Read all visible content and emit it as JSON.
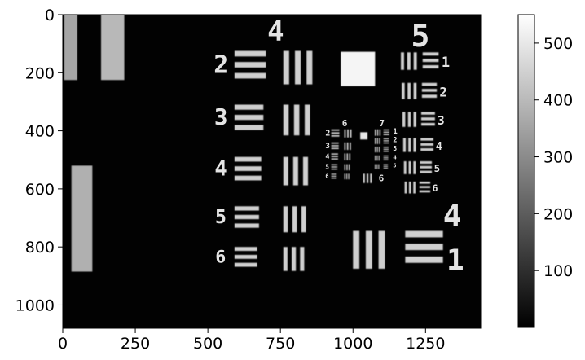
{
  "chart_data": {
    "type": "heatmap",
    "title": "",
    "xlabel": "",
    "ylabel": "",
    "colormap": "gray",
    "image_width": 1440,
    "image_height": 1080,
    "xlim": [
      0,
      1440
    ],
    "ylim": [
      1080,
      0
    ],
    "x_ticks": [
      0,
      250,
      500,
      750,
      1000,
      1250
    ],
    "y_ticks": [
      0,
      200,
      400,
      600,
      800,
      1000
    ],
    "colorbar": {
      "range": [
        0,
        550
      ],
      "ticks": [
        100,
        200,
        300,
        400,
        500
      ]
    },
    "target_labels": {
      "group_large": [
        "4",
        "5"
      ],
      "group4_elements": [
        "2",
        "3",
        "4",
        "5",
        "6"
      ],
      "group5_elements": [
        "1",
        "2",
        "3",
        "4",
        "5",
        "6"
      ],
      "group_small": [
        "6",
        "7"
      ],
      "group6_elements": [
        "2",
        "3",
        "4",
        "5",
        "6"
      ],
      "group7_elements": [
        "1",
        "2",
        "3",
        "4",
        "5",
        "6"
      ],
      "big_group": "4",
      "big_element": "1"
    }
  }
}
